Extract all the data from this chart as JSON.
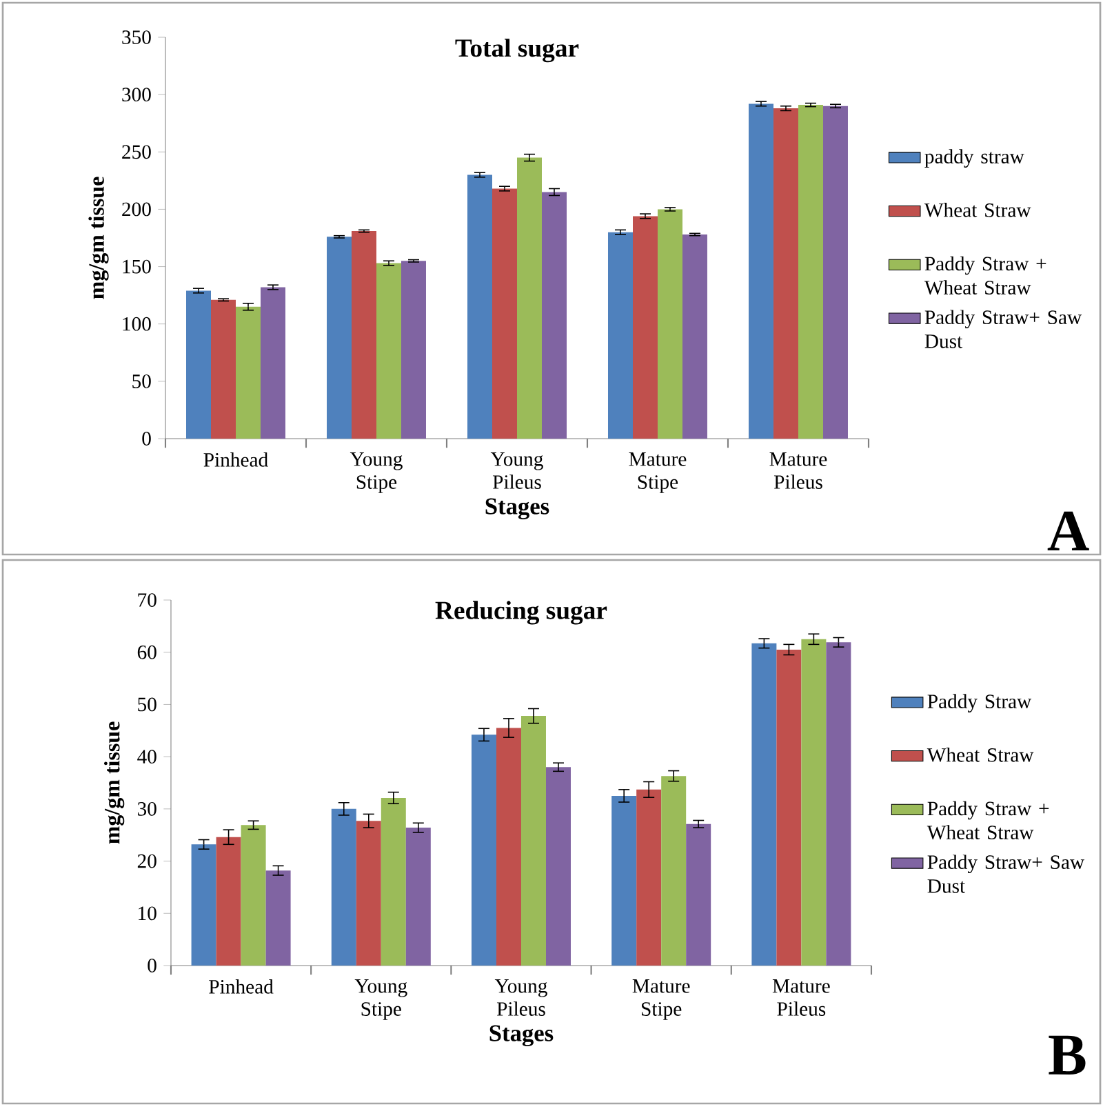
{
  "chart_data": [
    {
      "type": "bar",
      "title": "Total sugar",
      "xlabel": "Stages",
      "ylabel": "mg/gm tissue",
      "categories": [
        "Pinhead",
        "Young Stipe",
        "Young Pileus",
        "Mature Stipe",
        "Mature Pileus"
      ],
      "series": [
        {
          "name": "paddy straw",
          "color": "#4f81bd",
          "values": [
            129,
            176,
            230,
            180,
            292
          ],
          "errors": [
            2,
            1,
            2,
            2,
            2
          ]
        },
        {
          "name": "Wheat Straw",
          "color": "#c0504d",
          "values": [
            121,
            181,
            218,
            194,
            288
          ],
          "errors": [
            1,
            1,
            2,
            2,
            2
          ]
        },
        {
          "name": "Paddy Straw + Wheat Straw",
          "color": "#9bbb59",
          "values": [
            115,
            153,
            245,
            200,
            291
          ],
          "errors": [
            3,
            2,
            3,
            1.5,
            1.5
          ]
        },
        {
          "name": "Paddy Straw+ Saw Dust",
          "color": "#8064a2",
          "values": [
            132,
            155,
            215,
            178,
            290
          ],
          "errors": [
            2,
            1,
            3,
            1,
            1.5
          ]
        }
      ],
      "ylim": [
        0,
        350
      ],
      "yticks": [
        0,
        50,
        100,
        150,
        200,
        250,
        300,
        350
      ],
      "legend": "right",
      "grid": false,
      "annotations": [
        "A"
      ]
    },
    {
      "type": "bar",
      "title": "Reducing sugar",
      "xlabel": "Stages",
      "ylabel": "mg/gm tissue",
      "categories": [
        "Pinhead",
        "Young Stipe",
        "Young Pileus",
        "Mature Stipe",
        "Mature Pileus"
      ],
      "series": [
        {
          "name": "Paddy Straw",
          "color": "#4f81bd",
          "values": [
            23.2,
            30.0,
            44.2,
            32.5,
            61.7
          ],
          "errors": [
            0.9,
            1.2,
            1.2,
            1.2,
            0.9
          ]
        },
        {
          "name": "Wheat Straw",
          "color": "#c0504d",
          "values": [
            24.6,
            27.7,
            45.5,
            33.7,
            60.5
          ],
          "errors": [
            1.4,
            1.3,
            1.8,
            1.5,
            1.0
          ]
        },
        {
          "name": "Paddy Straw + Wheat Straw",
          "color": "#9bbb59",
          "values": [
            26.9,
            32.1,
            47.8,
            36.3,
            62.5
          ],
          "errors": [
            0.8,
            1.1,
            1.4,
            1.0,
            1.0
          ]
        },
        {
          "name": "Paddy Straw+ Saw Dust",
          "color": "#8064a2",
          "values": [
            18.2,
            26.4,
            38.0,
            27.1,
            61.9
          ],
          "errors": [
            0.9,
            0.9,
            0.8,
            0.7,
            0.9
          ]
        }
      ],
      "ylim": [
        0,
        70
      ],
      "yticks": [
        0,
        10,
        20,
        30,
        40,
        50,
        60,
        70
      ],
      "legend": "right",
      "grid": false,
      "annotations": [
        "B"
      ]
    }
  ]
}
